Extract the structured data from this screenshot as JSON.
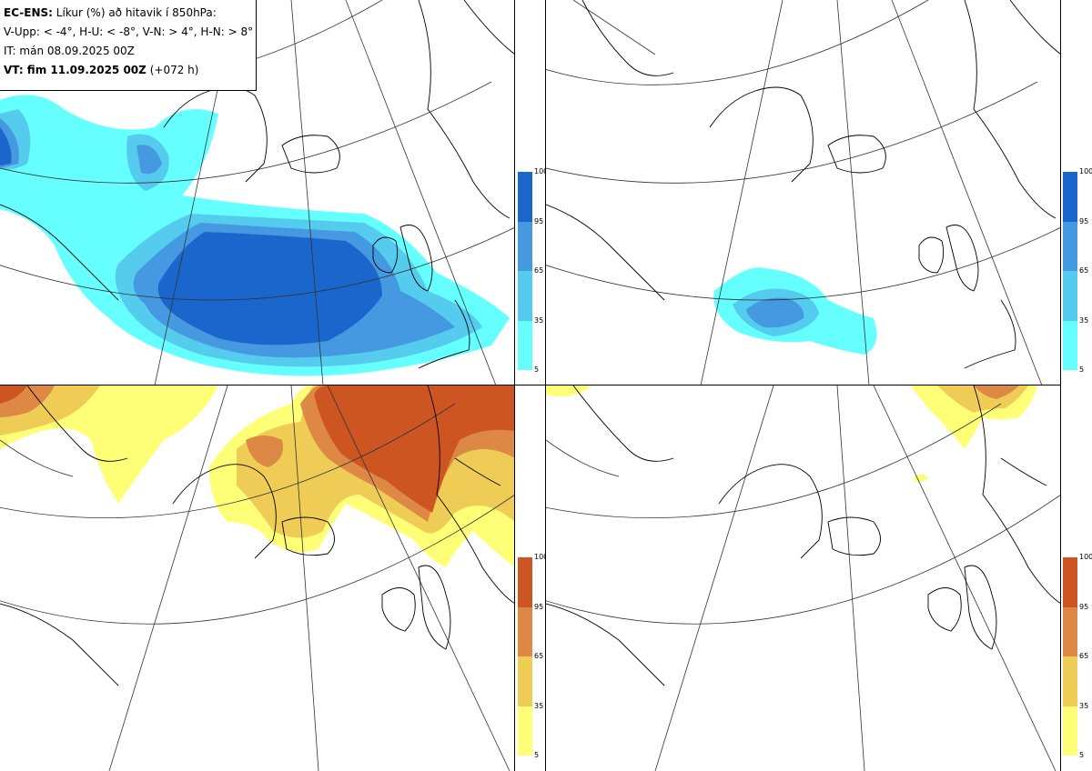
{
  "title_box": {
    "product": "EC-ENS:",
    "description": "Líkur (%) að hitavik í 850hPa:",
    "thresholds": "V-Upp: < -4°, H-U: < -8°, V-N: > 4°, H-N: > 8°",
    "init_time": "IT: mán 08.09.2025 00Z",
    "valid_label": "VT: fim 11.09.2025 00Z",
    "lead_time": "(+072 h)"
  },
  "colors": {
    "cold": [
      "#66ffff",
      "#55ccee",
      "#4499e0",
      "#1a66cc"
    ],
    "warm": [
      "#ffff77",
      "#eecc55",
      "#dd8844",
      "#cc5522"
    ],
    "coast": "#000000",
    "grid": "#333333"
  },
  "colorbar_ticks": [
    "100",
    "95",
    "65",
    "35",
    "5"
  ],
  "panels": [
    {
      "name": "cold-minus4",
      "label": "V-Upp: < -4°",
      "scale": "cold"
    },
    {
      "name": "cold-minus8",
      "label": "H-U: < -8°",
      "scale": "cold"
    },
    {
      "name": "warm-plus4",
      "label": "V-N: > 4°",
      "scale": "warm"
    },
    {
      "name": "warm-plus8",
      "label": "H-N: > 8°",
      "scale": "warm"
    }
  ]
}
